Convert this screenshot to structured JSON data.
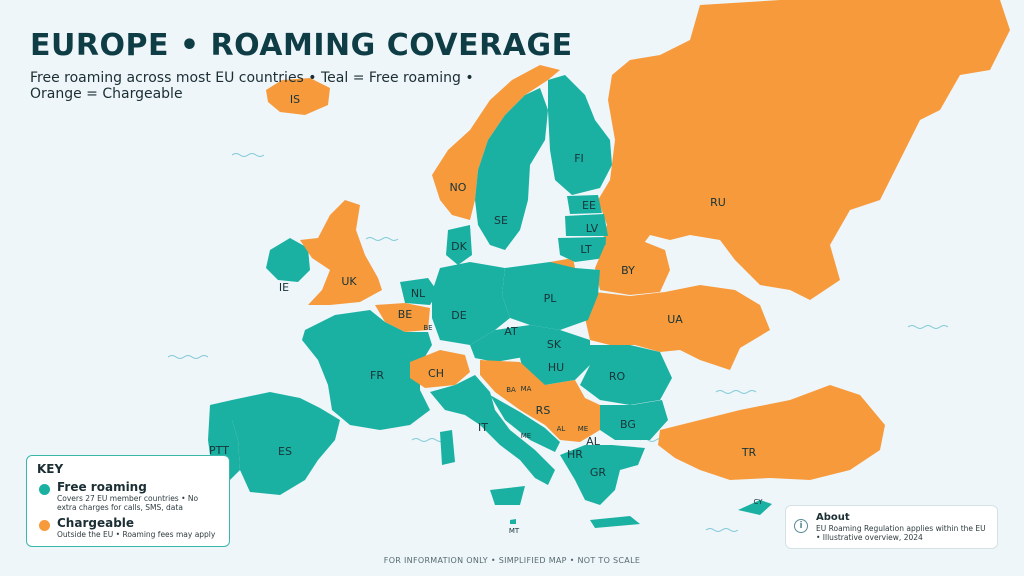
{
  "title": "EUROPE • ROAMING COVERAGE",
  "subtitle": "Free roaming across most EU countries • Teal = Free roaming • Orange = Chargeable",
  "colors": {
    "free": "#1bb1a2",
    "chargeable": "#f79a3c",
    "sea": "#eef6fa",
    "title": "#0f3d46"
  },
  "key": {
    "title": "KEY",
    "items": [
      {
        "label": "Free roaming",
        "description": "Covers 27 EU member countries • No extra charges for calls, SMS, data",
        "color": "#1bb1a2"
      },
      {
        "label": "Chargeable",
        "description": "Outside the EU • Roaming fees may apply",
        "color": "#f79a3c"
      }
    ]
  },
  "about": {
    "icon": "info-icon",
    "title": "About",
    "text": "EU Roaming Regulation applies within the EU • Illustrative overview, 2024"
  },
  "footer": "FOR INFORMATION ONLY • SIMPLIFIED MAP • NOT TO SCALE",
  "countries": {
    "is": "IS",
    "no": "NO",
    "se": "SE",
    "fi": "FI",
    "ru": "RU",
    "ee": "EE",
    "lv": "LV",
    "lt": "LT",
    "dk": "DK",
    "ie": "IE",
    "uk": "UK",
    "nl": "NL",
    "be": "BE",
    "lu": "BE",
    "de": "DE",
    "pl": "PL",
    "by": "BY",
    "ua": "UA",
    "at": "AT",
    "cz": "SK",
    "hu": "HU",
    "ro": "RO",
    "fr": "FR",
    "ch": "CH",
    "ba": "BA",
    "md": "MA",
    "rs": "RS",
    "it": "IT",
    "me": "ME",
    "al": "AL",
    "mk": "ME",
    "bg": "BG",
    "hr": "HR",
    "gr": "GR",
    "tr": "TR",
    "es": "ES",
    "pt": "PTT",
    "cy": "CY",
    "mt": "MT"
  }
}
